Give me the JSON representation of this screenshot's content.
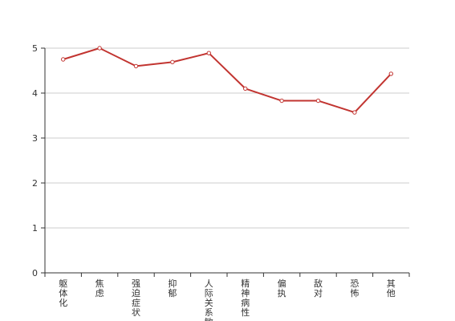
{
  "chart_data": {
    "type": "line",
    "categories": [
      "躯体化",
      "焦虑",
      "强迫症状",
      "抑郁",
      "人际关系敏感",
      "精神病性",
      "偏执",
      "敌对",
      "恐怖",
      "其他"
    ],
    "values": [
      4.75,
      5.0,
      4.6,
      4.69,
      4.89,
      4.1,
      3.83,
      3.83,
      3.57,
      4.43
    ],
    "ylim": [
      0,
      5
    ],
    "yticks": [
      0,
      1,
      2,
      3,
      4,
      5
    ],
    "title": "",
    "xlabel": "",
    "ylabel": "",
    "grid": true,
    "legend": "none",
    "line_color": "#c23531"
  }
}
